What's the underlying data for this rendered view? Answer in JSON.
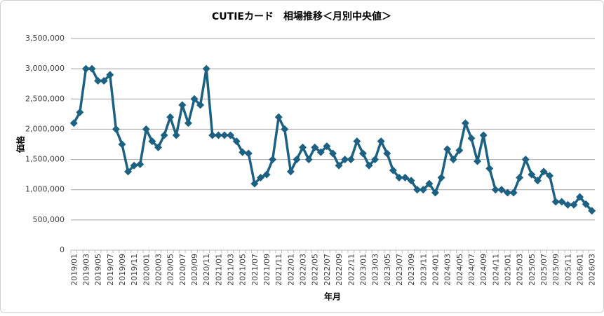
{
  "chart_data": {
    "type": "line",
    "title": "CUTIEカード　相場推移＜月別中央値＞",
    "x_label": "年月",
    "y_label": "価格",
    "color": "#1d6182",
    "grid": true,
    "categories": [
      "2019/01",
      null,
      "2019/03",
      null,
      "2019/05",
      null,
      "2019/07",
      null,
      "2019/09",
      null,
      "2019/11",
      null,
      "2020/01",
      null,
      "2020/03",
      null,
      "2020/05",
      null,
      "2020/07",
      null,
      "2020/09",
      null,
      "2020/11",
      null,
      "2021/01",
      null,
      "2021/03",
      null,
      "2021/05",
      null,
      "2021/07",
      null,
      "2021/09",
      null,
      "2021/11",
      null,
      "2022/01",
      null,
      "2022/03",
      null,
      "2022/05",
      null,
      "2022/07",
      null,
      "2022/09",
      null,
      "2022/11",
      null,
      "2023/01",
      null,
      "2023/03",
      null,
      "2023/05",
      null,
      "2023/07",
      null,
      "2023/09",
      null,
      "2023/11",
      null,
      "2024/01",
      null,
      "2024/03",
      null,
      "2024/05",
      null,
      "2024/07",
      null,
      "2024/09",
      null,
      "2024/11",
      null,
      "2025/01",
      null,
      "2025/03",
      null,
      "2025/05",
      null,
      "2025/07",
      null,
      "2025/09",
      null,
      "2025/11",
      null,
      "2026/01",
      null,
      "2026/03"
    ],
    "values": [
      2100000,
      2280000,
      3000000,
      3000000,
      2800000,
      2800000,
      2900000,
      2000000,
      1750000,
      1300000,
      1400000,
      1420000,
      2000000,
      1800000,
      1700000,
      1900000,
      2200000,
      1900000,
      2400000,
      2100000,
      2500000,
      2400000,
      3000000,
      1900000,
      1900000,
      1900000,
      1900000,
      1800000,
      1620000,
      1600000,
      1100000,
      1200000,
      1250000,
      1500000,
      2200000,
      2000000,
      1300000,
      1500000,
      1700000,
      1500000,
      1700000,
      1620000,
      1720000,
      1600000,
      1400000,
      1500000,
      1500000,
      1800000,
      1600000,
      1400000,
      1500000,
      1800000,
      1600000,
      1320000,
      1200000,
      1200000,
      1150000,
      1000000,
      1000000,
      1100000,
      950000,
      1200000,
      1670000,
      1500000,
      1650000,
      2100000,
      1850000,
      1470000,
      1900000,
      1350000,
      1000000,
      1000000,
      950000,
      950000,
      1200000,
      1500000,
      1250000,
      1150000,
      1300000,
      1230000,
      800000,
      800000,
      750000,
      750000,
      880000,
      760000,
      650000
    ],
    "ylim": [
      0,
      3500000
    ],
    "yticks": [
      0,
      {
        "value": 500000,
        "label": "500,000"
      },
      {
        "value": 1000000,
        "label": "1,000,000"
      },
      {
        "value": 1500000,
        "label": "1,500,000"
      },
      {
        "value": 2000000,
        "label": "2,000,000"
      },
      {
        "value": 2500000,
        "label": "2,500,000"
      },
      {
        "value": 3000000,
        "label": "3,000,000"
      },
      {
        "value": 3500000,
        "label": "3,500,000"
      }
    ]
  }
}
